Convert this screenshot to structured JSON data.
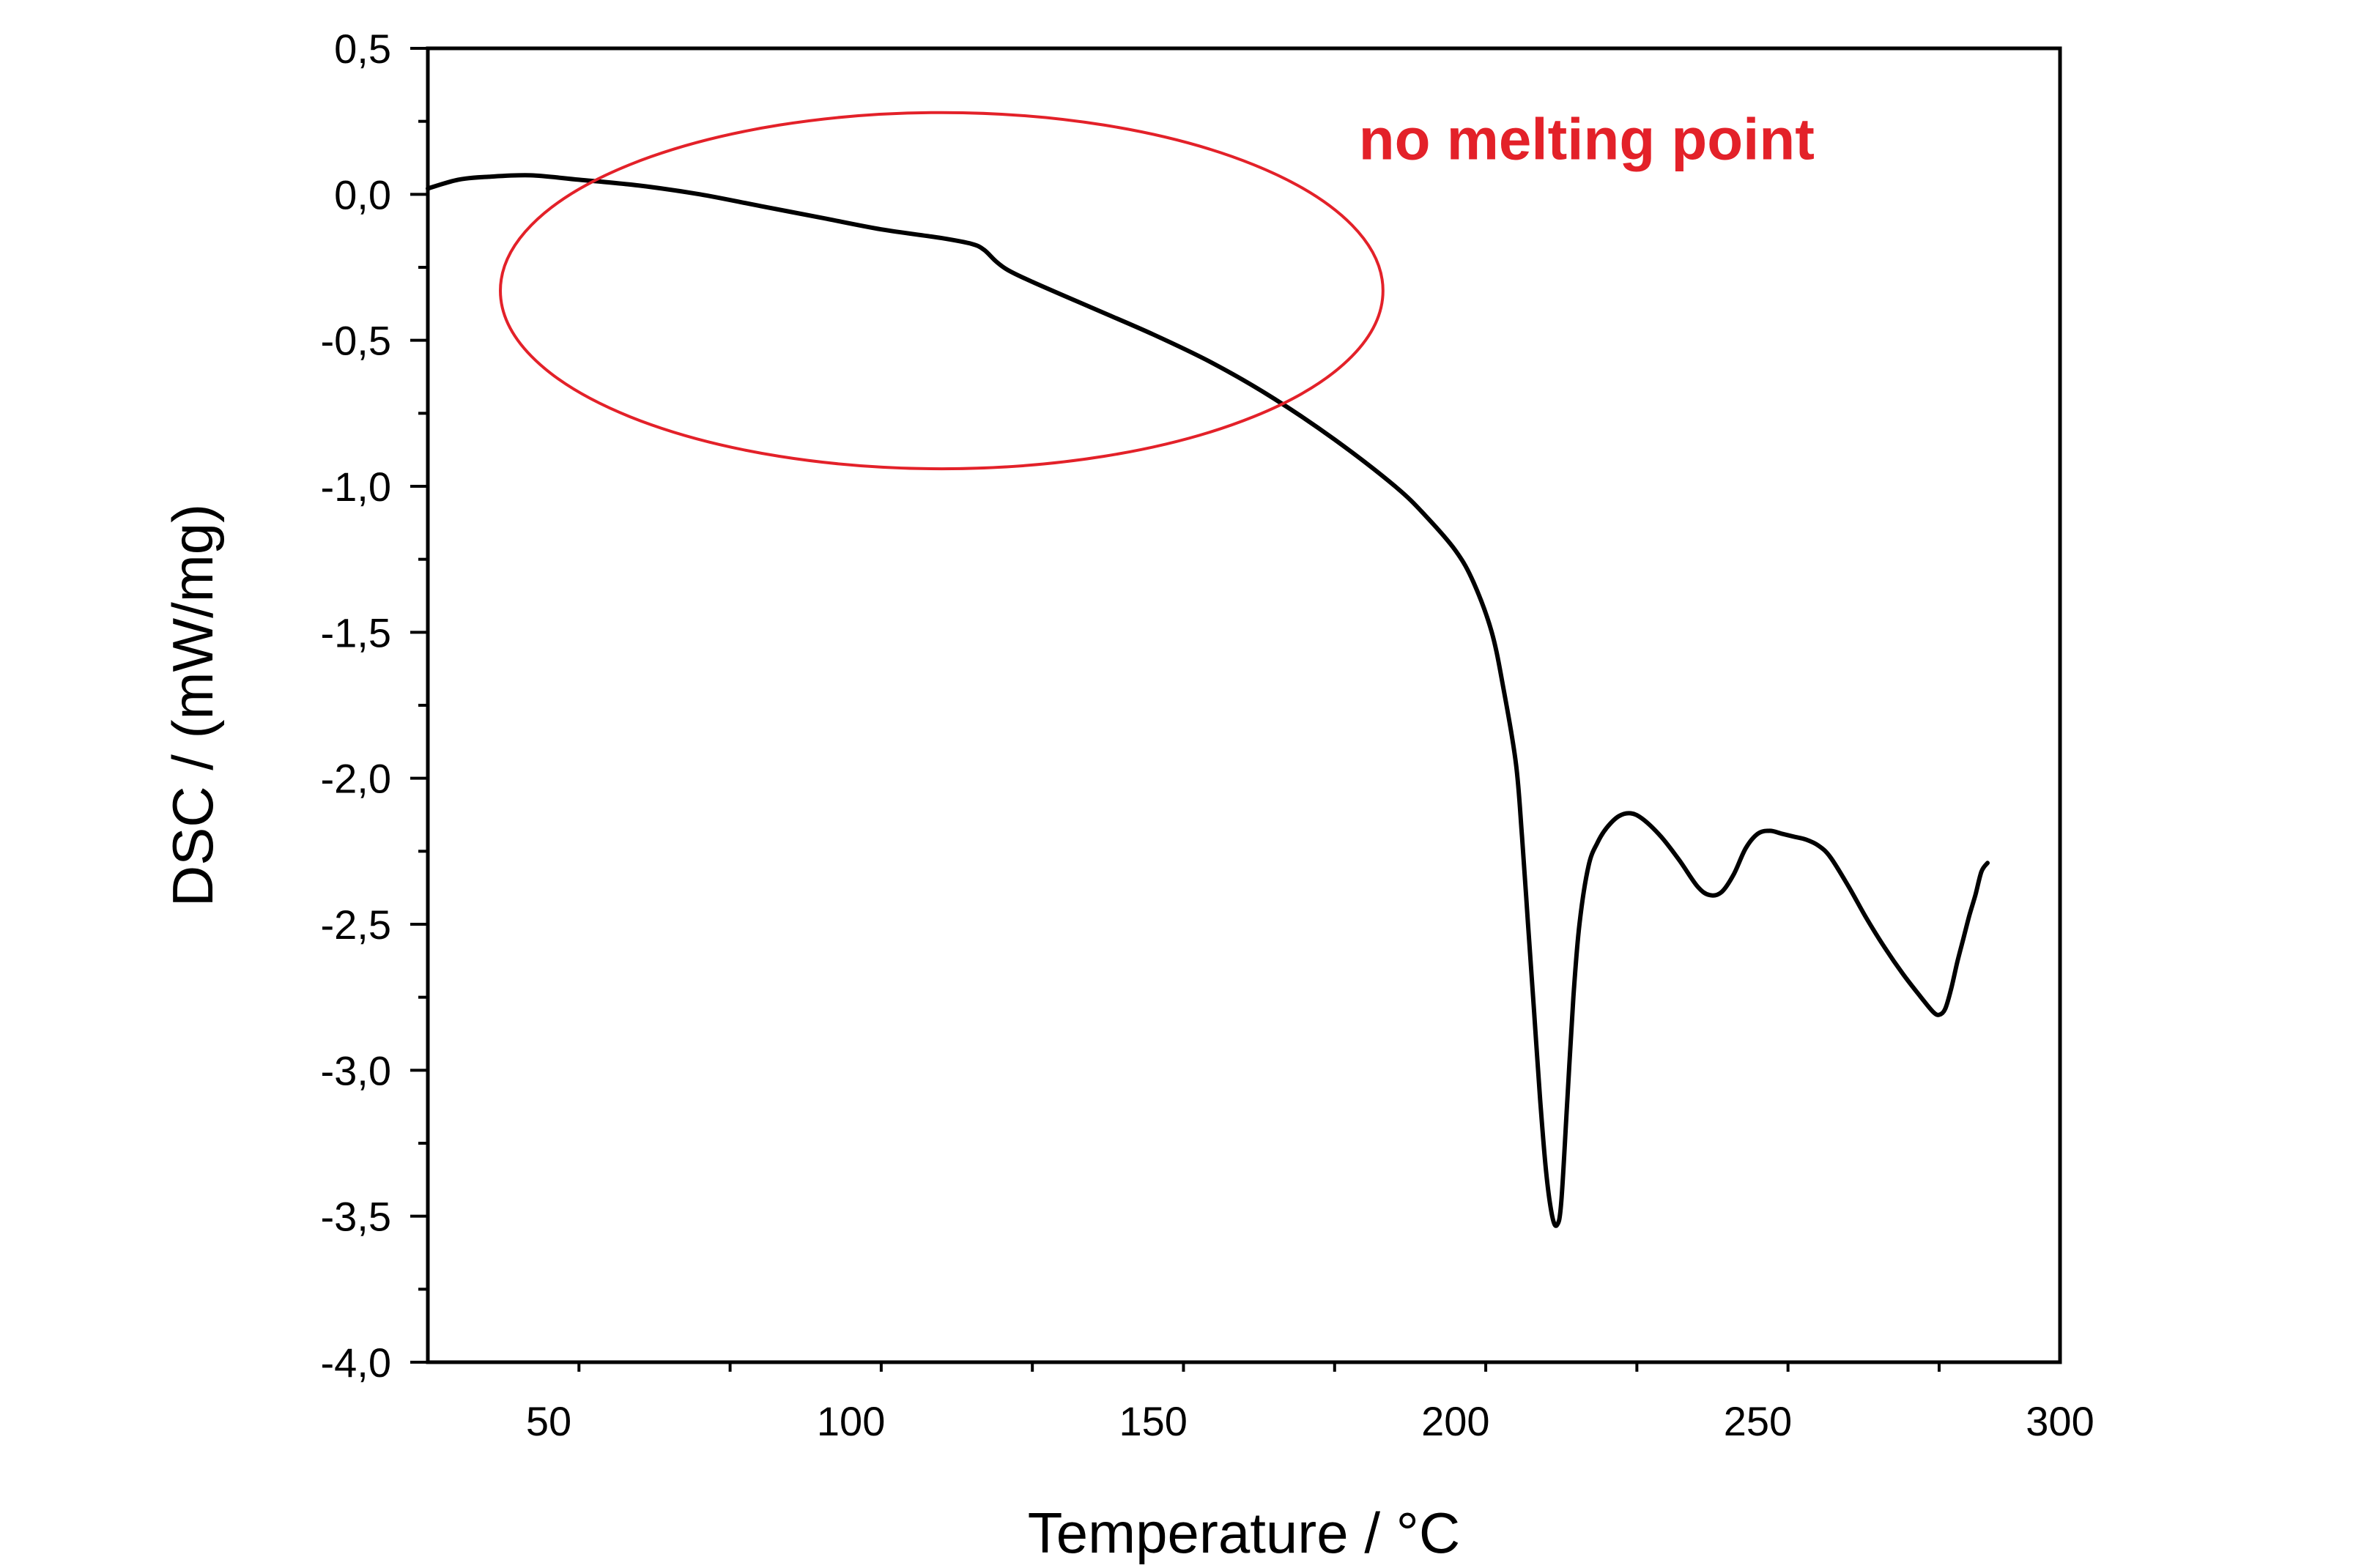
{
  "chart_data": {
    "type": "line",
    "title": "",
    "xlabel": "Temperature / °C",
    "ylabel": "DSC / (mW/mg)",
    "xlim": [
      30,
      300
    ],
    "ylim": [
      -4.0,
      0.5
    ],
    "x_major_ticks": [
      50,
      100,
      150,
      200,
      250,
      300
    ],
    "x_tick_labels": [
      "50",
      "100",
      "150",
      "200",
      "250",
      "300"
    ],
    "y_major_ticks": [
      0.5,
      0.0,
      -0.5,
      -1.0,
      -1.5,
      -2.0,
      -2.5,
      -3.0,
      -3.5,
      -4.0
    ],
    "y_tick_labels": [
      "0,5",
      "0,0",
      "-0,5",
      "-1,0",
      "-1,5",
      "-2,0",
      "-2,5",
      "-3,0",
      "-3,5",
      "-4,0"
    ],
    "grid": false,
    "series": [
      {
        "name": "DSC",
        "color": "#000000",
        "x": [
          30,
          35,
          40,
          47,
          55,
          65,
          75,
          85,
          95,
          105,
          115,
          120,
          122,
          124,
          126,
          130,
          140,
          150,
          160,
          170,
          180,
          190,
          195,
          200,
          203,
          206,
          208,
          210,
          211,
          212,
          213,
          214,
          215,
          216,
          216.8,
          217.5,
          218.5,
          219.5,
          220.5,
          222,
          223.5,
          225,
          227,
          229,
          231,
          234,
          237,
          240,
          242,
          244,
          246,
          248,
          250,
          252,
          254,
          256,
          258,
          260,
          262,
          265,
          268,
          271,
          274,
          277,
          279,
          280,
          281,
          282,
          283,
          284,
          285,
          286,
          287,
          288
        ],
        "y": [
          0.02,
          0.05,
          0.06,
          0.065,
          0.05,
          0.03,
          0.0,
          -0.04,
          -0.08,
          -0.12,
          -0.15,
          -0.17,
          -0.19,
          -0.23,
          -0.26,
          -0.3,
          -0.39,
          -0.48,
          -0.58,
          -0.7,
          -0.84,
          -1.0,
          -1.1,
          -1.22,
          -1.33,
          -1.5,
          -1.7,
          -1.95,
          -2.2,
          -2.5,
          -2.8,
          -3.1,
          -3.35,
          -3.5,
          -3.53,
          -3.45,
          -3.1,
          -2.75,
          -2.5,
          -2.3,
          -2.22,
          -2.17,
          -2.13,
          -2.12,
          -2.14,
          -2.2,
          -2.28,
          -2.37,
          -2.4,
          -2.39,
          -2.33,
          -2.24,
          -2.19,
          -2.18,
          -2.19,
          -2.2,
          -2.21,
          -2.23,
          -2.27,
          -2.37,
          -2.48,
          -2.58,
          -2.67,
          -2.75,
          -2.8,
          -2.81,
          -2.79,
          -2.72,
          -2.63,
          -2.55,
          -2.47,
          -2.4,
          -2.32,
          -2.29
        ]
      }
    ],
    "annotations": [
      {
        "text": "no melting point",
        "color": "#e32129",
        "x": 184,
        "y": 0.12,
        "shape": "ellipse",
        "shape_center": [
          115,
          -0.33
        ],
        "shape_radii": [
          73,
          0.61
        ]
      }
    ]
  }
}
